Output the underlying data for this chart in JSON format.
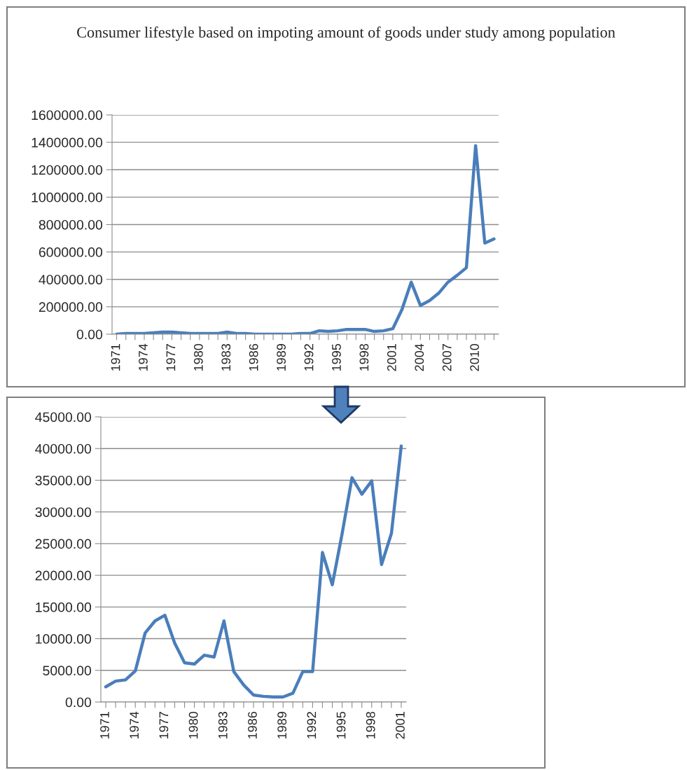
{
  "chart_data": [
    {
      "type": "line",
      "title": "Consumer lifestyle based on impoting amount of goods under study among population",
      "categories": [
        "1971",
        null,
        null,
        "1974",
        null,
        null,
        "1977",
        null,
        null,
        "1980",
        null,
        null,
        "1983",
        null,
        null,
        "1986",
        null,
        null,
        "1989",
        null,
        null,
        "1992",
        null,
        null,
        "1995",
        null,
        null,
        "1998",
        null,
        null,
        "2001",
        null,
        null,
        "2004",
        null,
        null,
        "2007",
        null,
        null,
        "2010",
        null,
        null
      ],
      "series": [
        {
          "color": "#4a7ebb",
          "values": [
            0,
            5000,
            5000,
            5000,
            10000,
            15000,
            15000,
            10000,
            5000,
            5000,
            5000,
            5000,
            15000,
            5000,
            5000,
            0,
            0,
            0,
            0,
            0,
            5000,
            5000,
            25000,
            20000,
            25000,
            35000,
            35000,
            35000,
            20000,
            25000,
            40000,
            180000,
            380000,
            210000,
            245000,
            300000,
            380000,
            430000,
            485000,
            1375000,
            665000,
            695000
          ]
        }
      ],
      "ylim": [
        0,
        1600000
      ],
      "yticks": [
        {
          "value": 0,
          "label": "0.00"
        },
        {
          "value": 200000,
          "label": "200000.00"
        },
        {
          "value": 400000,
          "label": "400000.00"
        },
        {
          "value": 600000,
          "label": "600000.00"
        },
        {
          "value": 800000,
          "label": "800000.00"
        },
        {
          "value": 1000000,
          "label": "1000000.00"
        },
        {
          "value": 1200000,
          "label": "1200000.00"
        },
        {
          "value": 1400000,
          "label": "1400000.00"
        },
        {
          "value": 1600000,
          "label": "1600000.00"
        }
      ],
      "grid": "y",
      "marker": "none",
      "line_style": "solid"
    },
    {
      "type": "line",
      "categories": [
        "1971",
        null,
        null,
        "1974",
        null,
        null,
        "1977",
        null,
        null,
        "1980",
        null,
        null,
        "1983",
        null,
        null,
        "1986",
        null,
        null,
        "1989",
        null,
        null,
        "1992",
        null,
        null,
        "1995",
        null,
        null,
        "1998",
        null,
        null,
        "2001"
      ],
      "series": [
        {
          "color": "#4a7ebb",
          "values": [
            2400,
            3300,
            3500,
            4900,
            10900,
            12800,
            13700,
            9300,
            6200,
            6000,
            7400,
            7100,
            12800,
            4800,
            2700,
            1100,
            900,
            800,
            800,
            1400,
            4800,
            4800,
            23600,
            18500,
            26600,
            35400,
            32800,
            34900,
            21700,
            26600,
            40400
          ]
        }
      ],
      "ylim": [
        0,
        45000
      ],
      "yticks": [
        {
          "value": 0,
          "label": "0.00"
        },
        {
          "value": 5000,
          "label": "5000.00"
        },
        {
          "value": 10000,
          "label": "10000.00"
        },
        {
          "value": 15000,
          "label": "15000.00"
        },
        {
          "value": 20000,
          "label": "20000.00"
        },
        {
          "value": 25000,
          "label": "25000.00"
        },
        {
          "value": 30000,
          "label": "30000.00"
        },
        {
          "value": 35000,
          "label": "35000.00"
        },
        {
          "value": 40000,
          "label": "40000.00"
        },
        {
          "value": 45000,
          "label": "45000.00"
        }
      ],
      "grid": "y",
      "marker": "none",
      "line_style": "solid"
    }
  ]
}
